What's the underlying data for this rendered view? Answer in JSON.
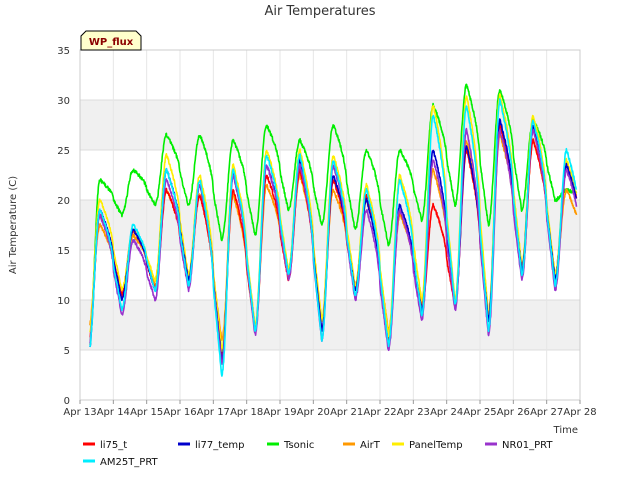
{
  "chart_data": {
    "type": "line",
    "title": "Air Temperatures",
    "xlabel": "Time",
    "ylabel": "Air Temperature (C)",
    "badge": "WP_flux",
    "x_ticks": [
      "Apr 13",
      "Apr 14",
      "Apr 15",
      "Apr 16",
      "Apr 17",
      "Apr 18",
      "Apr 19",
      "Apr 20",
      "Apr 21",
      "Apr 22",
      "Apr 23",
      "Apr 24",
      "Apr 25",
      "Apr 26",
      "Apr 27",
      "Apr 28"
    ],
    "y_ticks": [
      0,
      5,
      10,
      15,
      20,
      25,
      30,
      35
    ],
    "xlim": [
      0,
      15
    ],
    "ylim": [
      0,
      35
    ],
    "x_unit": "days since Apr 13 00:00",
    "grid": "horizontal alternating bands",
    "legend_position": "bottom",
    "daily_min_max": {
      "li75_t": [
        [
          5.5,
          18.5
        ],
        [
          10.5,
          17
        ],
        [
          11,
          21
        ],
        [
          12,
          20.5
        ],
        [
          4.5,
          21
        ],
        [
          7,
          22.5
        ],
        [
          12,
          23
        ],
        [
          7,
          22
        ],
        [
          11,
          20.5
        ],
        [
          6,
          19
        ],
        [
          9,
          19.5
        ],
        [
          9.5,
          25
        ],
        [
          8,
          27.5
        ],
        [
          12.5,
          26
        ],
        [
          12.5,
          23.5
        ]
      ],
      "li77_temp": [
        [
          4.5,
          19
        ],
        [
          10,
          17
        ],
        [
          11,
          23
        ],
        [
          12,
          21.5
        ],
        [
          4,
          22.5
        ],
        [
          7,
          23.5
        ],
        [
          12.5,
          24
        ],
        [
          7,
          22.5
        ],
        [
          11,
          20
        ],
        [
          5.5,
          19.5
        ],
        [
          9,
          25
        ],
        [
          9.5,
          25.5
        ],
        [
          8,
          28
        ],
        [
          13,
          27.5
        ],
        [
          12,
          23.5
        ]
      ],
      "Tsonic": [
        [
          4.5,
          22
        ],
        [
          18.5,
          23
        ],
        [
          19.5,
          26.5
        ],
        [
          19.5,
          26.5
        ],
        [
          16,
          26
        ],
        [
          16.5,
          27.5
        ],
        [
          19,
          26
        ],
        [
          17.5,
          27.5
        ],
        [
          17,
          25
        ],
        [
          15.5,
          25
        ],
        [
          18,
          29.5
        ],
        [
          19.5,
          31.5
        ],
        [
          17.5,
          31
        ],
        [
          19,
          28
        ],
        [
          20,
          21
        ]
      ],
      "AirT": [
        [
          7,
          17.5
        ],
        [
          10.5,
          16.5
        ],
        [
          11.5,
          21
        ],
        [
          12.5,
          20.5
        ],
        [
          6,
          20.5
        ],
        [
          7,
          21.5
        ],
        [
          12.5,
          22.5
        ],
        [
          8,
          21
        ],
        [
          11.5,
          20
        ],
        [
          7,
          18.5
        ],
        [
          9.5,
          23
        ],
        [
          10,
          26
        ],
        [
          8.5,
          26.5
        ],
        [
          13,
          26
        ],
        [
          12.5,
          21
        ]
      ],
      "PanelTemp": [
        [
          6,
          20
        ],
        [
          11,
          17
        ],
        [
          12,
          24.5
        ],
        [
          12.5,
          22.5
        ],
        [
          5,
          23.5
        ],
        [
          7.5,
          25
        ],
        [
          13,
          25
        ],
        [
          8,
          24.5
        ],
        [
          11.5,
          21.5
        ],
        [
          6.5,
          22.5
        ],
        [
          10,
          29.5
        ],
        [
          10,
          30.5
        ],
        [
          8.5,
          30.5
        ],
        [
          13.5,
          28.5
        ],
        [
          12.5,
          24
        ]
      ],
      "NR01_PRT": [
        [
          5,
          18.5
        ],
        [
          8.5,
          16
        ],
        [
          10,
          22
        ],
        [
          11,
          21.5
        ],
        [
          3.5,
          22.5
        ],
        [
          6.5,
          23.5
        ],
        [
          12,
          23.5
        ],
        [
          6,
          23.5
        ],
        [
          10,
          19
        ],
        [
          5,
          19
        ],
        [
          8,
          24
        ],
        [
          9,
          27
        ],
        [
          6.5,
          27
        ],
        [
          12,
          27
        ],
        [
          11,
          23
        ]
      ],
      "AM25T_PRT": [
        [
          4.5,
          19
        ],
        [
          9,
          17.5
        ],
        [
          11,
          23
        ],
        [
          11.5,
          22
        ],
        [
          2.5,
          23
        ],
        [
          7,
          24.5
        ],
        [
          12.5,
          24.5
        ],
        [
          6,
          24
        ],
        [
          10.5,
          21
        ],
        [
          5.5,
          22
        ],
        [
          8.5,
          28.5
        ],
        [
          9.5,
          29.5
        ],
        [
          7,
          30
        ],
        [
          12.5,
          28
        ],
        [
          11.5,
          25
        ]
      ]
    },
    "series": [
      {
        "name": "li75_t",
        "color": "#ff0000"
      },
      {
        "name": "li77_temp",
        "color": "#0000cc"
      },
      {
        "name": "Tsonic",
        "color": "#00ee00"
      },
      {
        "name": "AirT",
        "color": "#ff9900"
      },
      {
        "name": "PanelTemp",
        "color": "#ffee00"
      },
      {
        "name": "NR01_PRT",
        "color": "#9933cc"
      },
      {
        "name": "AM25T_PRT",
        "color": "#00eeff"
      }
    ]
  }
}
